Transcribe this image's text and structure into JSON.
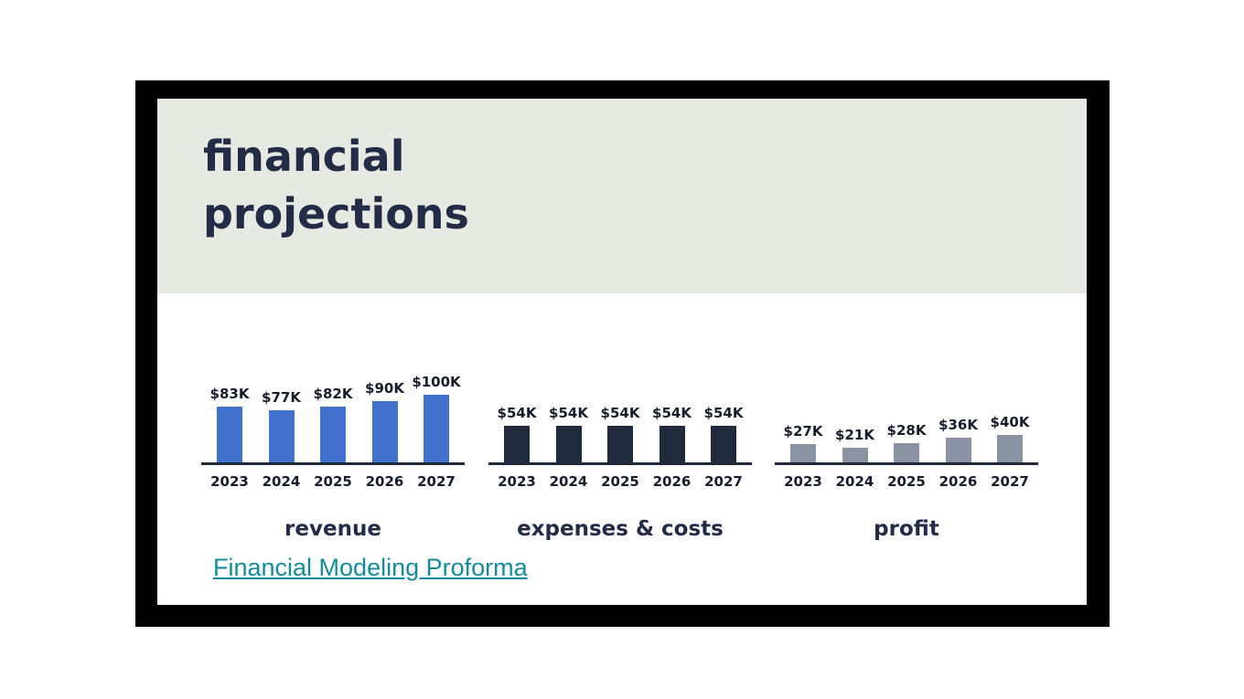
{
  "slide": {
    "title_line1": "financial",
    "title_line2": "projections",
    "link_text": "Financial Modeling Proforma"
  },
  "colors": {
    "header_bg": "#E6EAE2",
    "title_text": "#222C46",
    "axis": "#1F2A3C",
    "label_text": "#151C2C",
    "revenue_bar": "#4372CE",
    "expenses_bar": "#1F2A3C",
    "profit_bar": "#8A93A1",
    "link": "#148C9B",
    "frame": "#000000"
  },
  "chart_data": [
    {
      "type": "bar",
      "title": "revenue",
      "categories": [
        "2023",
        "2024",
        "2025",
        "2026",
        "2027"
      ],
      "values": [
        83,
        77,
        82,
        90,
        100
      ],
      "value_labels": [
        "$83K",
        "$77K",
        "$82K",
        "$90K",
        "$100K"
      ],
      "unit": "$K",
      "ylim": [
        0,
        110
      ],
      "grid": false,
      "legend": "none",
      "bar_color_key": "revenue_bar"
    },
    {
      "type": "bar",
      "title": "expenses & costs",
      "categories": [
        "2023",
        "2024",
        "2025",
        "2026",
        "2027"
      ],
      "values": [
        54,
        54,
        54,
        54,
        54
      ],
      "value_labels": [
        "$54K",
        "$54K",
        "$54K",
        "$54K",
        "$54K"
      ],
      "unit": "$K",
      "ylim": [
        0,
        110
      ],
      "grid": false,
      "legend": "none",
      "bar_color_key": "expenses_bar"
    },
    {
      "type": "bar",
      "title": "profit",
      "categories": [
        "2023",
        "2024",
        "2025",
        "2026",
        "2027"
      ],
      "values": [
        27,
        21,
        28,
        36,
        40
      ],
      "value_labels": [
        "$27K",
        "$21K",
        "$28K",
        "$36K",
        "$40K"
      ],
      "unit": "$K",
      "ylim": [
        0,
        110
      ],
      "grid": false,
      "legend": "none",
      "bar_color_key": "profit_bar"
    }
  ]
}
